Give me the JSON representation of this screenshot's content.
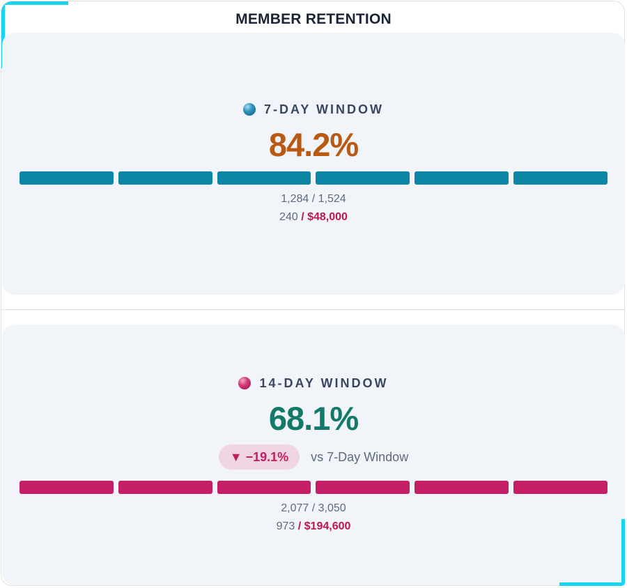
{
  "title": "MEMBER RETENTION",
  "colors": {
    "seven_day_bar": "#0d85a4",
    "seven_day_value": "#b85a12",
    "fourteen_day_bar": "#c61e66",
    "fourteen_day_value": "#137a6a",
    "accent": "#19d3f5"
  },
  "chart_data": [
    {
      "type": "bar",
      "label": "7-DAY WINDOW",
      "value_text": "84.2%",
      "value": 84.2,
      "counts": "1,284 / 1,524",
      "retained": 1284,
      "total": 1524,
      "lost_count": "240",
      "lost_amount": "/ $48,000",
      "segments": 6,
      "filled_segments": 6
    },
    {
      "type": "bar",
      "label": "14-DAY WINDOW",
      "value_text": "68.1%",
      "value": 68.1,
      "delta": "▼ −19.1%",
      "delta_caption": "vs 7-Day Window",
      "counts": "2,077 / 3,050",
      "retained": 2077,
      "total": 3050,
      "lost_count": "973",
      "lost_amount": "/ $194,600",
      "segments": 6,
      "filled_segments": 6
    }
  ]
}
